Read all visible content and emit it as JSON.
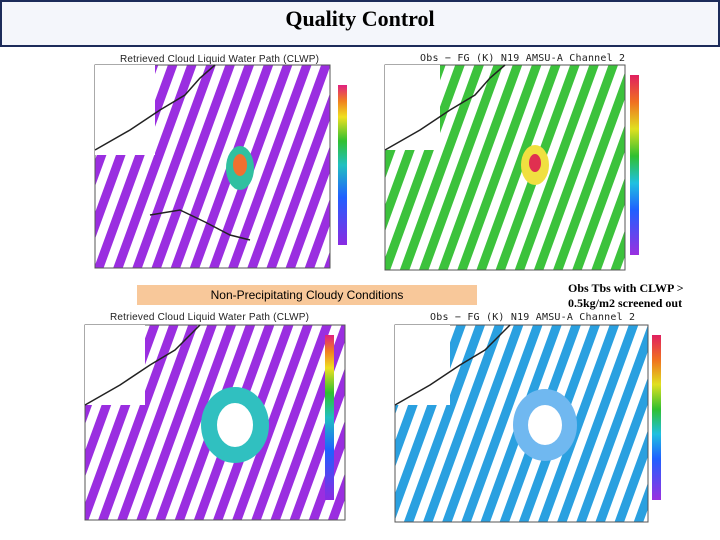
{
  "header": {
    "title": "Quality Control"
  },
  "panels": [
    {
      "caption": "Retrieved Cloud Liquid Water Path (CLWP)"
    },
    {
      "caption": "Obs − FG (K) N19 AMSU-A Channel 2"
    },
    {
      "caption": "Retrieved Cloud Liquid Water Path (CLWP)"
    },
    {
      "caption": "Obs − FG (K) N19 AMSU-A Channel 2"
    }
  ],
  "banner": "Non-Precipitating Cloudy Conditions",
  "note": "Obs Tbs with CLWP > 0.5kg/m2 screened out"
}
